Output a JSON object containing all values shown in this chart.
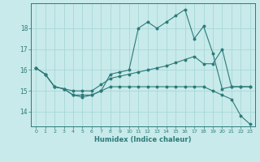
{
  "xlabel": "Humidex (Indice chaleur)",
  "bg_color": "#c8eaea",
  "grid_color": "#a8d8d8",
  "line_color": "#2d7a7a",
  "marker_color": "#2d7a7a",
  "x_ticks": [
    0,
    1,
    2,
    3,
    4,
    5,
    6,
    7,
    8,
    9,
    10,
    11,
    12,
    13,
    14,
    15,
    16,
    17,
    18,
    19,
    20,
    21,
    22,
    23
  ],
  "y_ticks": [
    14,
    15,
    16,
    17,
    18
  ],
  "ylim": [
    13.3,
    19.2
  ],
  "xlim": [
    -0.5,
    23.5
  ],
  "series1": [
    16.1,
    15.8,
    15.2,
    15.1,
    14.8,
    14.7,
    14.8,
    15.0,
    15.8,
    15.9,
    16.0,
    18.0,
    18.3,
    18.0,
    18.3,
    18.6,
    18.9,
    17.5,
    18.1,
    16.8,
    15.1,
    15.2,
    15.2,
    15.2
  ],
  "series2": [
    16.1,
    15.8,
    15.2,
    15.1,
    15.0,
    15.0,
    15.0,
    15.3,
    15.6,
    15.7,
    15.8,
    15.9,
    16.0,
    16.1,
    16.2,
    16.35,
    16.5,
    16.65,
    16.3,
    16.3,
    17.0,
    15.2,
    15.2,
    15.2
  ],
  "series3": [
    16.1,
    15.8,
    15.2,
    15.1,
    14.8,
    14.8,
    14.8,
    15.0,
    15.2,
    15.2,
    15.2,
    15.2,
    15.2,
    15.2,
    15.2,
    15.2,
    15.2,
    15.2,
    15.2,
    15.0,
    14.8,
    14.6,
    13.8,
    13.4
  ]
}
